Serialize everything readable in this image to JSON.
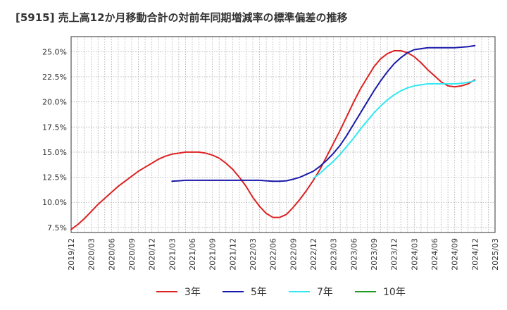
{
  "chart_data": {
    "type": "line",
    "title": "[5915]  売上高12か月移動合計の対前年同期増減率の標準偏差の推移",
    "xlabel": "",
    "ylabel": "",
    "x_ticks": [
      "2019/12",
      "2020/03",
      "2020/06",
      "2020/09",
      "2020/12",
      "2021/03",
      "2021/06",
      "2021/09",
      "2021/12",
      "2022/03",
      "2022/06",
      "2022/09",
      "2022/12",
      "2023/03",
      "2023/06",
      "2023/09",
      "2023/12",
      "2024/03",
      "2024/06",
      "2024/09",
      "2024/12",
      "2025/03"
    ],
    "y_ticks": [
      "7.5%",
      "10.0%",
      "12.5%",
      "15.0%",
      "17.5%",
      "20.0%",
      "22.5%",
      "25.0%"
    ],
    "ylim": [
      7.0,
      26.5
    ],
    "grid": true,
    "legend_position": "bottom",
    "series": [
      {
        "name": "3年",
        "color": "#dd2222",
        "points": [
          [
            "2019/12",
            7.3
          ],
          [
            "2020/01",
            7.8
          ],
          [
            "2020/02",
            8.4
          ],
          [
            "2020/03",
            9.1
          ],
          [
            "2020/04",
            9.8
          ],
          [
            "2020/05",
            10.4
          ],
          [
            "2020/06",
            11.0
          ],
          [
            "2020/07",
            11.6
          ],
          [
            "2020/08",
            12.1
          ],
          [
            "2020/09",
            12.6
          ],
          [
            "2020/10",
            13.1
          ],
          [
            "2020/11",
            13.5
          ],
          [
            "2020/12",
            13.9
          ],
          [
            "2021/01",
            14.3
          ],
          [
            "2021/02",
            14.6
          ],
          [
            "2021/03",
            14.8
          ],
          [
            "2021/04",
            14.9
          ],
          [
            "2021/05",
            15.0
          ],
          [
            "2021/06",
            15.0
          ],
          [
            "2021/07",
            15.0
          ],
          [
            "2021/08",
            14.9
          ],
          [
            "2021/09",
            14.7
          ],
          [
            "2021/10",
            14.4
          ],
          [
            "2021/11",
            13.9
          ],
          [
            "2021/12",
            13.3
          ],
          [
            "2022/01",
            12.5
          ],
          [
            "2022/02",
            11.6
          ],
          [
            "2022/03",
            10.5
          ],
          [
            "2022/04",
            9.6
          ],
          [
            "2022/05",
            8.9
          ],
          [
            "2022/06",
            8.5
          ],
          [
            "2022/07",
            8.5
          ],
          [
            "2022/08",
            8.8
          ],
          [
            "2022/09",
            9.5
          ],
          [
            "2022/10",
            10.3
          ],
          [
            "2022/11",
            11.2
          ],
          [
            "2022/12",
            12.2
          ],
          [
            "2023/01",
            13.3
          ],
          [
            "2023/02",
            14.6
          ],
          [
            "2023/03",
            15.9
          ],
          [
            "2023/04",
            17.2
          ],
          [
            "2023/05",
            18.6
          ],
          [
            "2023/06",
            20.0
          ],
          [
            "2023/07",
            21.3
          ],
          [
            "2023/08",
            22.4
          ],
          [
            "2023/09",
            23.5
          ],
          [
            "2023/10",
            24.3
          ],
          [
            "2023/11",
            24.8
          ],
          [
            "2023/12",
            25.1
          ],
          [
            "2024/01",
            25.1
          ],
          [
            "2024/02",
            24.9
          ],
          [
            "2024/03",
            24.5
          ],
          [
            "2024/04",
            23.9
          ],
          [
            "2024/05",
            23.2
          ],
          [
            "2024/06",
            22.6
          ],
          [
            "2024/07",
            22.0
          ],
          [
            "2024/08",
            21.6
          ],
          [
            "2024/09",
            21.5
          ],
          [
            "2024/10",
            21.6
          ],
          [
            "2024/11",
            21.8
          ],
          [
            "2024/12",
            22.2
          ]
        ]
      },
      {
        "name": "5年",
        "color": "#1a1aaa",
        "points": [
          [
            "2021/03",
            12.1
          ],
          [
            "2021/04",
            12.15
          ],
          [
            "2021/05",
            12.2
          ],
          [
            "2021/06",
            12.2
          ],
          [
            "2021/07",
            12.2
          ],
          [
            "2021/08",
            12.2
          ],
          [
            "2021/09",
            12.2
          ],
          [
            "2021/10",
            12.2
          ],
          [
            "2021/11",
            12.2
          ],
          [
            "2021/12",
            12.2
          ],
          [
            "2022/01",
            12.2
          ],
          [
            "2022/02",
            12.2
          ],
          [
            "2022/03",
            12.2
          ],
          [
            "2022/04",
            12.2
          ],
          [
            "2022/05",
            12.15
          ],
          [
            "2022/06",
            12.1
          ],
          [
            "2022/07",
            12.1
          ],
          [
            "2022/08",
            12.15
          ],
          [
            "2022/09",
            12.3
          ],
          [
            "2022/10",
            12.5
          ],
          [
            "2022/11",
            12.8
          ],
          [
            "2022/12",
            13.1
          ],
          [
            "2023/01",
            13.6
          ],
          [
            "2023/02",
            14.2
          ],
          [
            "2023/03",
            14.9
          ],
          [
            "2023/04",
            15.7
          ],
          [
            "2023/05",
            16.7
          ],
          [
            "2023/06",
            17.8
          ],
          [
            "2023/07",
            18.9
          ],
          [
            "2023/08",
            20.0
          ],
          [
            "2023/09",
            21.1
          ],
          [
            "2023/10",
            22.1
          ],
          [
            "2023/11",
            23.0
          ],
          [
            "2023/12",
            23.8
          ],
          [
            "2024/01",
            24.4
          ],
          [
            "2024/02",
            24.9
          ],
          [
            "2024/03",
            25.2
          ],
          [
            "2024/04",
            25.3
          ],
          [
            "2024/05",
            25.4
          ],
          [
            "2024/06",
            25.4
          ],
          [
            "2024/07",
            25.4
          ],
          [
            "2024/08",
            25.4
          ],
          [
            "2024/09",
            25.4
          ],
          [
            "2024/10",
            25.45
          ],
          [
            "2024/11",
            25.5
          ],
          [
            "2024/12",
            25.6
          ]
        ]
      },
      {
        "name": "7年",
        "color": "#33e8f2",
        "points": [
          [
            "2022/12",
            12.4
          ],
          [
            "2023/01",
            12.9
          ],
          [
            "2023/02",
            13.5
          ],
          [
            "2023/03",
            14.1
          ],
          [
            "2023/04",
            14.8
          ],
          [
            "2023/05",
            15.6
          ],
          [
            "2023/06",
            16.4
          ],
          [
            "2023/07",
            17.3
          ],
          [
            "2023/08",
            18.1
          ],
          [
            "2023/09",
            18.9
          ],
          [
            "2023/10",
            19.6
          ],
          [
            "2023/11",
            20.2
          ],
          [
            "2023/12",
            20.7
          ],
          [
            "2024/01",
            21.1
          ],
          [
            "2024/02",
            21.4
          ],
          [
            "2024/03",
            21.6
          ],
          [
            "2024/04",
            21.7
          ],
          [
            "2024/05",
            21.8
          ],
          [
            "2024/06",
            21.8
          ],
          [
            "2024/07",
            21.8
          ],
          [
            "2024/08",
            21.8
          ],
          [
            "2024/09",
            21.8
          ],
          [
            "2024/10",
            21.85
          ],
          [
            "2024/11",
            21.95
          ],
          [
            "2024/12",
            22.1
          ]
        ]
      },
      {
        "name": "10年",
        "color": "#229922",
        "points": []
      }
    ]
  }
}
